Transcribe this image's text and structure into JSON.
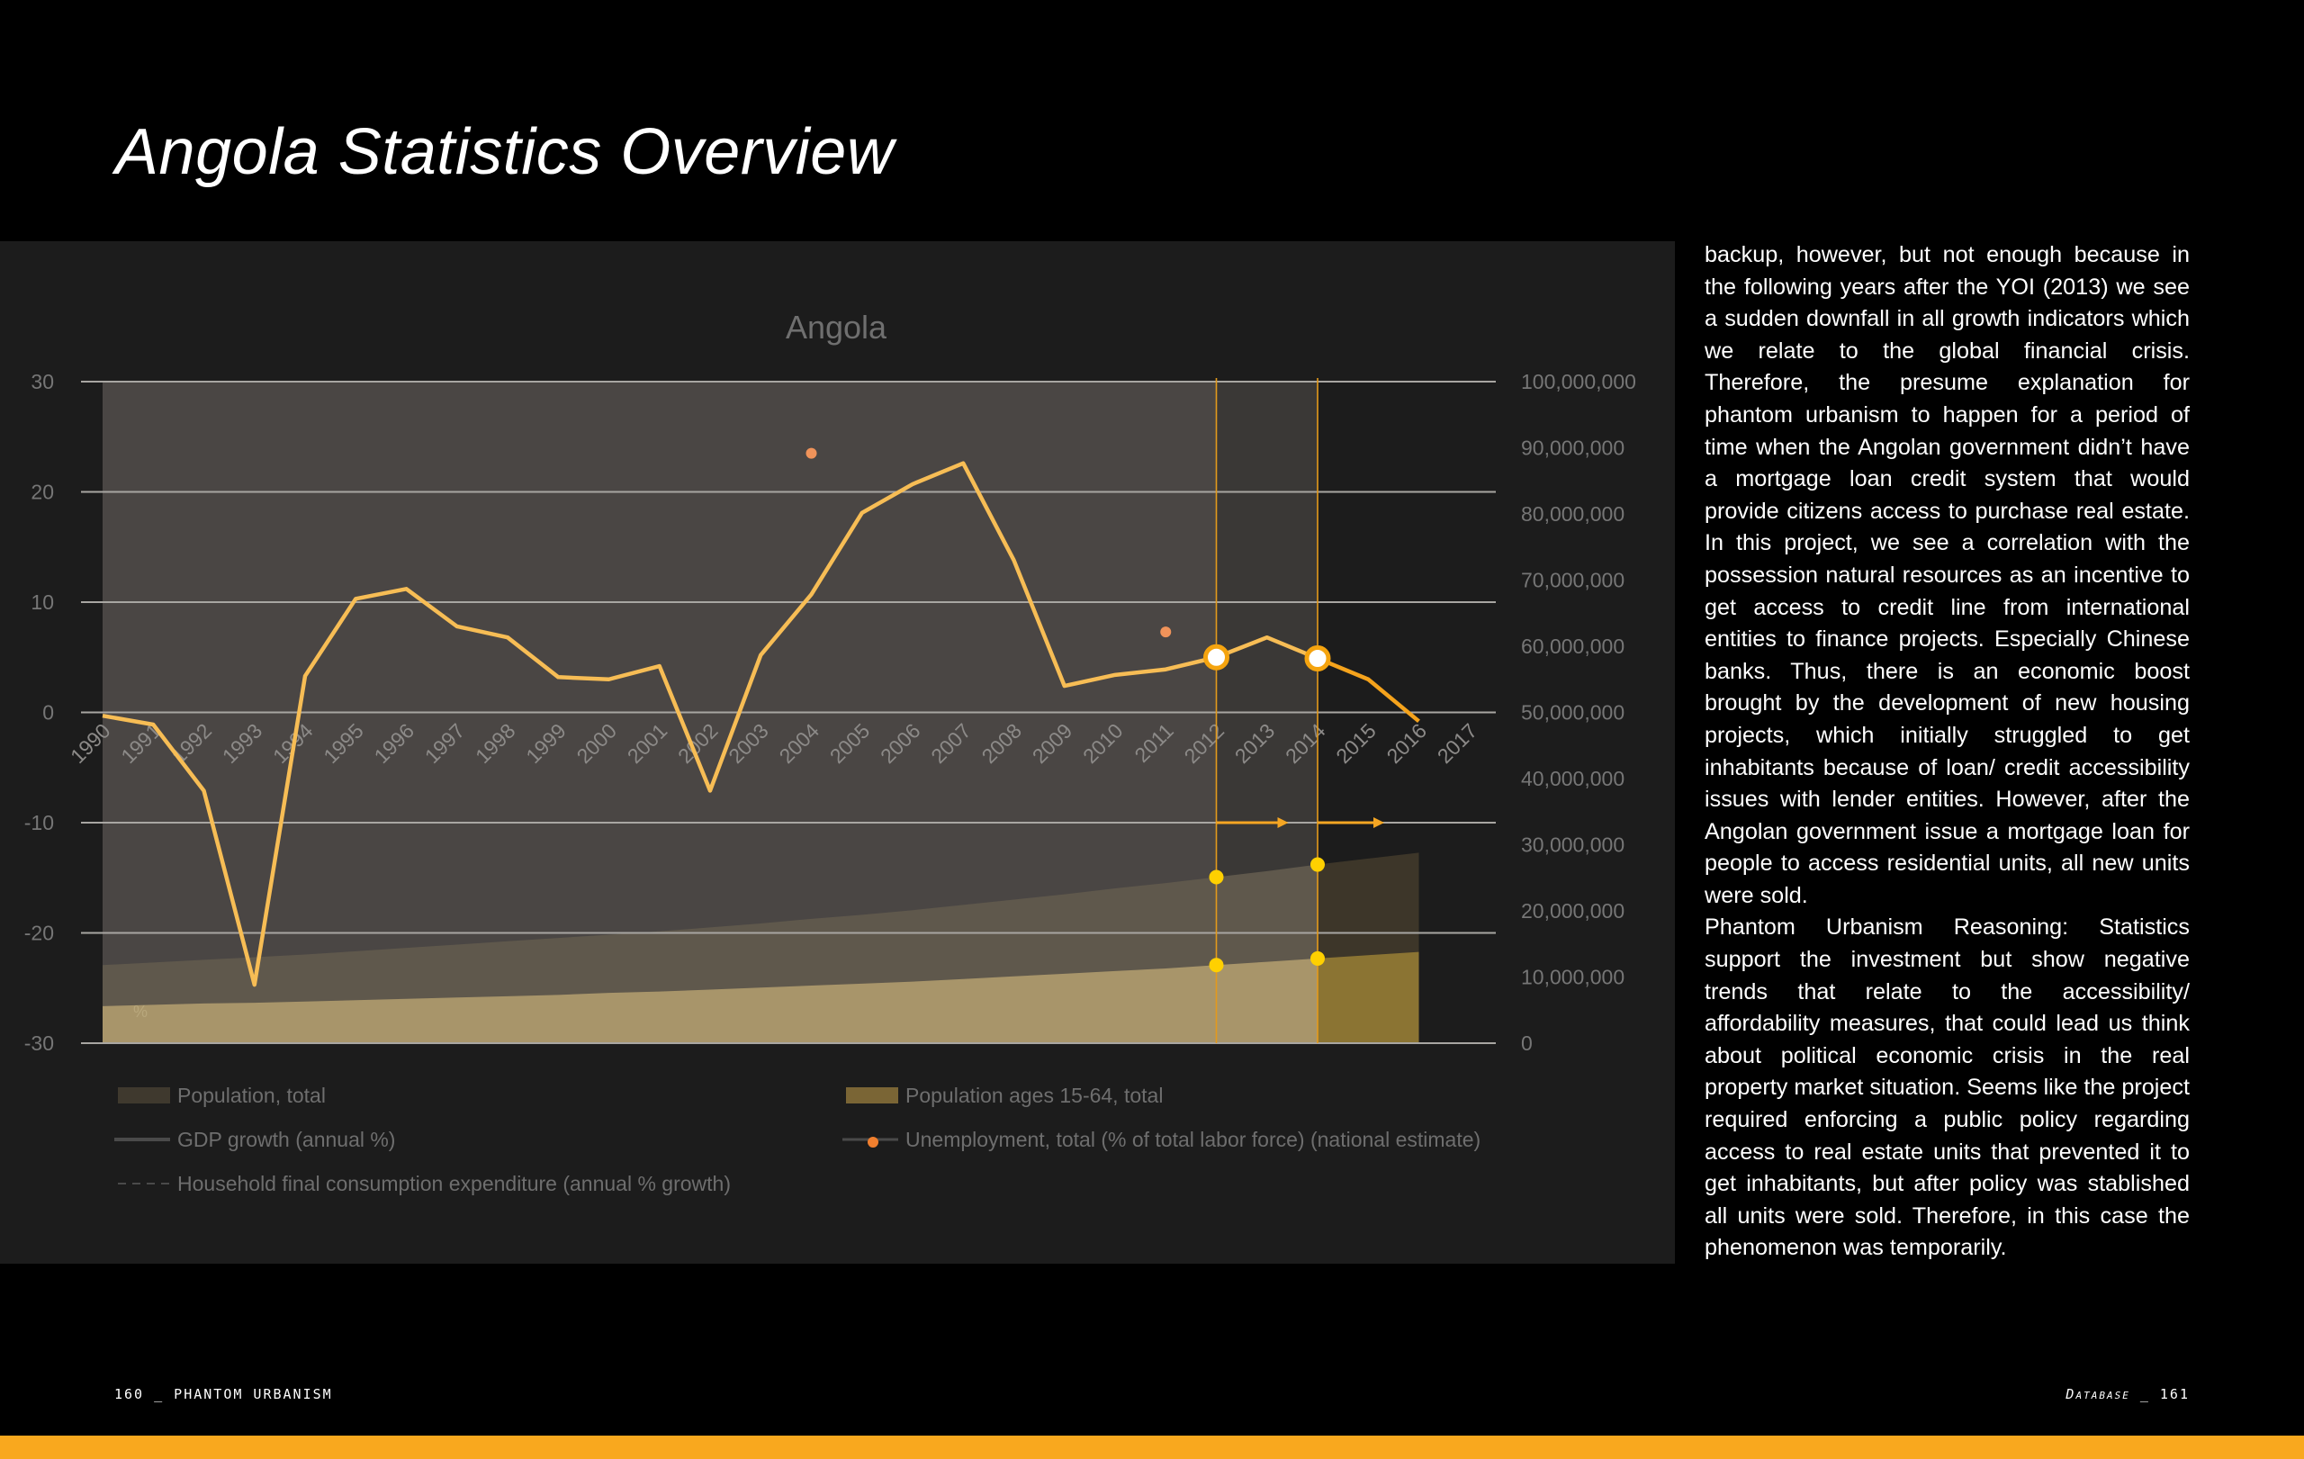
{
  "page": {
    "title": "Angola Statistics Overview",
    "footer_left": "160 _ PHANTOM URBANISM",
    "footer_right_section": "Database",
    "footer_right_page": "_ 161",
    "accent_color": "#f9a81e"
  },
  "body_text": {
    "paragraphs": [
      "backup, however, but not enough because in the following years after the YOI (2013) we see a sudden downfall in all growth indicators which we relate to the global financial crisis. Therefore, the presume explanation for phantom urbanism to happen for a period of time when the Angolan government didn’t have a mortgage loan credit system that would provide citizens access to purchase real estate. In this project, we see a correlation with the possession natural resources as an incentive to get access to credit line from international entities to finance projects. Especially Chinese banks. Thus, there is an economic boost brought by the development of new housing projects, which initially struggled to get inhabitants because of loan/ credit accessibility issues with lender entities. However, after the Angolan government issue a mortgage loan for people to access residential units, all new units were sold.",
      "Phantom Urbanism Reasoning: Statistics support the investment but show negative trends that relate to the accessibility/ affordability measures, that could lead us think about political economic crisis in the real property market situation. Seems like the project required enforcing a public policy regarding access to real estate units that prevented it to get inhabitants, but after policy was stablished all units were sold. Therefore, in this case the phenomenon was temporarily."
    ]
  },
  "chart_data": {
    "type": "line",
    "title": "Angola",
    "grid": true,
    "legend_position": "bottom",
    "x_tick_labels": [
      "1990",
      "1991",
      "1992",
      "1993",
      "1994",
      "1995",
      "1996",
      "1997",
      "1998",
      "1999",
      "2000",
      "2001",
      "2002",
      "2003",
      "2004",
      "2005",
      "2006",
      "2007",
      "2008",
      "2009",
      "2010",
      "2011",
      "2012",
      "2013",
      "2014",
      "2015",
      "2016",
      "2017"
    ],
    "ylim": [
      -30,
      30
    ],
    "y_tick_labels": [
      "30",
      "20",
      "10",
      "0",
      "-10",
      "-20",
      "-30"
    ],
    "y_unit_label": "%",
    "y2lim": [
      0,
      100000000
    ],
    "y2_tick_labels": [
      "100,000,000",
      "90,000,000",
      "80,000,000",
      "70,000,000",
      "60,000,000",
      "50,000,000",
      "40,000,000",
      "30,000,000",
      "20,000,000",
      "10,000,000",
      "0"
    ],
    "highlight_years": [
      2012,
      2014
    ],
    "series": [
      {
        "name": "Population, total",
        "kind": "area",
        "axis": "right",
        "color": "#5f584c",
        "color_after": "#3d3629",
        "x": [
          1990,
          1991,
          1992,
          1993,
          1994,
          1995,
          1996,
          1997,
          1998,
          1999,
          2000,
          2001,
          2002,
          2003,
          2004,
          2005,
          2006,
          2007,
          2008,
          2009,
          2010,
          2011,
          2012,
          2013,
          2014,
          2015,
          2016
        ],
        "values": [
          11800000,
          12200000,
          12600000,
          13000000,
          13400000,
          13900000,
          14400000,
          14900000,
          15400000,
          15900000,
          16400000,
          16900000,
          17500000,
          18100000,
          18800000,
          19400000,
          20100000,
          20900000,
          21700000,
          22500000,
          23400000,
          24200000,
          25100000,
          26000000,
          27000000,
          27900000,
          28800000
        ]
      },
      {
        "name": "Population ages 15-64, total",
        "kind": "area",
        "axis": "right",
        "color": "#a8956a",
        "color_after": "#8b7433",
        "x": [
          1990,
          1991,
          1992,
          1993,
          1994,
          1995,
          1996,
          1997,
          1998,
          1999,
          2000,
          2001,
          2002,
          2003,
          2004,
          2005,
          2006,
          2007,
          2008,
          2009,
          2010,
          2011,
          2012,
          2013,
          2014,
          2015,
          2016
        ],
        "values": [
          5600000,
          5800000,
          6000000,
          6100000,
          6300000,
          6500000,
          6700000,
          6900000,
          7100000,
          7300000,
          7600000,
          7800000,
          8100000,
          8400000,
          8700000,
          9000000,
          9300000,
          9700000,
          10100000,
          10500000,
          10900000,
          11300000,
          11800000,
          12300000,
          12800000,
          13300000,
          13800000
        ]
      },
      {
        "name": "GDP growth (annual %)",
        "kind": "line",
        "axis": "left",
        "color": "#f7bd55",
        "color_after": "#f5a31c",
        "x": [
          1990,
          1991,
          1992,
          1993,
          1994,
          1995,
          1996,
          1997,
          1998,
          1999,
          2000,
          2001,
          2002,
          2003,
          2004,
          2005,
          2006,
          2007,
          2008,
          2009,
          2010,
          2011,
          2012,
          2013,
          2014,
          2015,
          2016
        ],
        "values": [
          -0.3,
          -1.1,
          -7.1,
          -24.7,
          3.3,
          10.3,
          11.2,
          7.8,
          6.8,
          3.2,
          3.0,
          4.2,
          -7.1,
          5.2,
          10.7,
          18.1,
          20.7,
          22.6,
          13.8,
          2.4,
          3.4,
          3.9,
          5.0,
          6.8,
          4.9,
          3.0,
          -0.8
        ]
      },
      {
        "name": "Unemployment, total (% of total labor force) (national estimate)",
        "kind": "points",
        "axis": "left",
        "color": "#f0935a",
        "x": [
          2004,
          2011
        ],
        "values": [
          23.5,
          7.3
        ]
      },
      {
        "name": "Household final consumption expenditure (annual % growth)",
        "kind": "dashed-line",
        "axis": "left",
        "color": "#555555",
        "x": [],
        "values": []
      }
    ],
    "legend": [
      {
        "label": "Population, total",
        "symbol": "swatch",
        "color": "#3f392e"
      },
      {
        "label": "Population ages 15-64, total",
        "symbol": "swatch",
        "color": "#7a6535"
      },
      {
        "label": "GDP growth (annual %)",
        "symbol": "line",
        "color": "#4a4a4a"
      },
      {
        "label": "Unemployment, total (% of total labor force) (national estimate)",
        "symbol": "line-dot",
        "color": "#f07f2e"
      },
      {
        "label": "Household final consumption expenditure (annual % growth)",
        "symbol": "dash",
        "color": "#4a4a4a"
      }
    ]
  }
}
